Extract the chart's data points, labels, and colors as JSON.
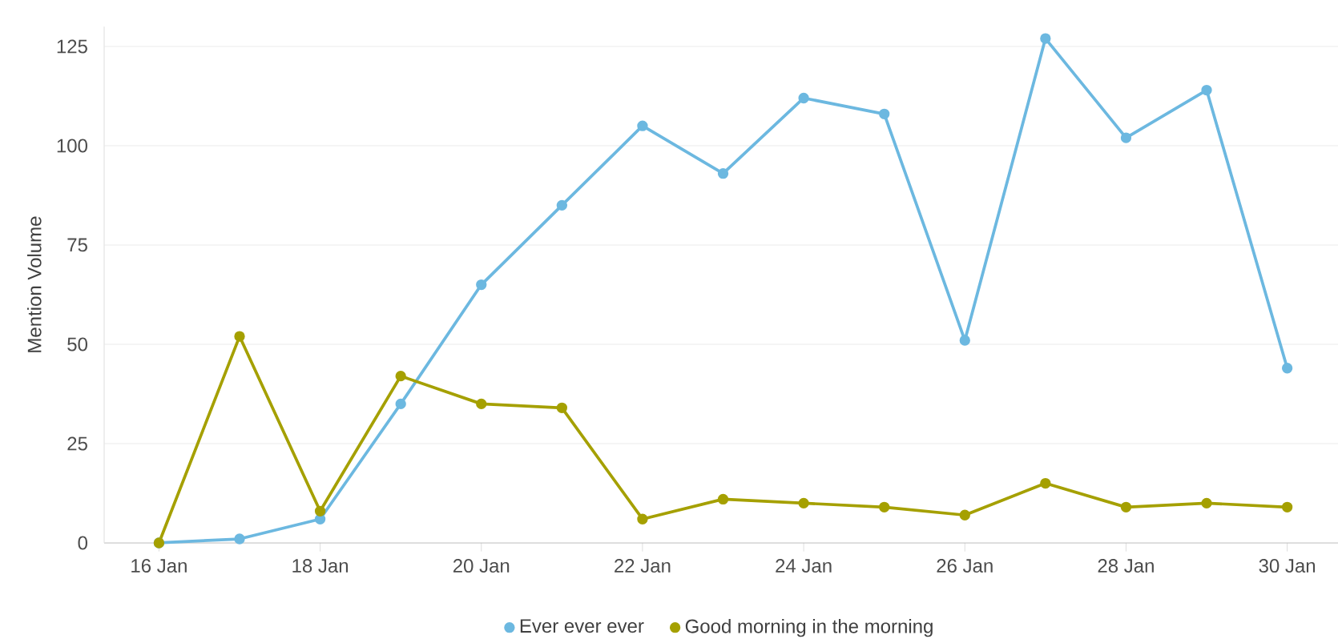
{
  "chart_data": {
    "type": "line",
    "ylabel": "Mention Volume",
    "categories": [
      "16 Jan",
      null,
      "18 Jan",
      null,
      "20 Jan",
      null,
      "22 Jan",
      null,
      "24 Jan",
      null,
      "26 Jan",
      null,
      "28 Jan",
      null,
      "30 Jan"
    ],
    "series": [
      {
        "name": "Ever ever ever",
        "color": "#6cb8e0",
        "values": [
          0,
          1,
          6,
          35,
          65,
          85,
          105,
          93,
          112,
          108,
          51,
          127,
          102,
          114,
          44
        ]
      },
      {
        "name": "Good morning in the morning",
        "color": "#a5a000",
        "values": [
          0,
          52,
          8,
          42,
          35,
          34,
          6,
          11,
          10,
          9,
          7,
          15,
          9,
          10,
          9
        ]
      }
    ],
    "ylim": [
      0,
      130
    ],
    "yticks": [
      0,
      25,
      50,
      75,
      100,
      125
    ],
    "grid": "y",
    "legend": "bottom",
    "marker": "circle",
    "line_style": "solid"
  }
}
